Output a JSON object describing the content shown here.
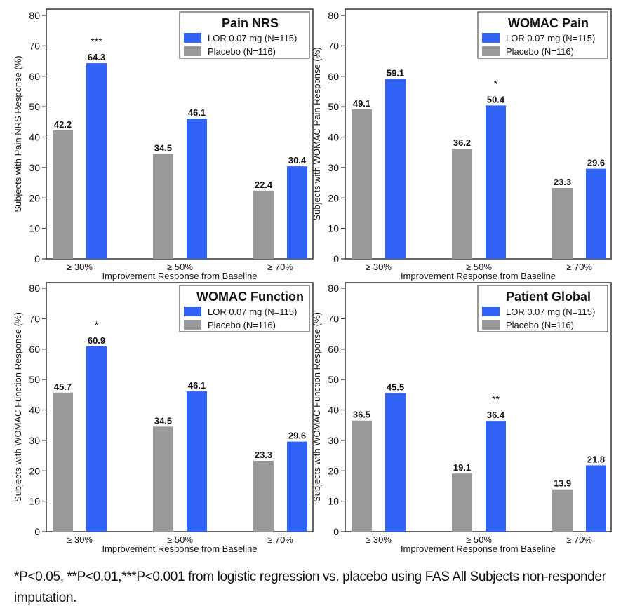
{
  "colors": {
    "active": "#3062F5",
    "placebo": "#999999",
    "axis": "#333333",
    "text": "#111111"
  },
  "footnote": "*P<0.05, **P<0.01,***P<0.001 from logistic regression vs. placebo using FAS All Subjects non-responder imputation.",
  "chart_data": [
    {
      "type": "bar",
      "title": "Pain NRS",
      "xlabel": "Improvement Response from Baseline",
      "ylabel": "Subjects with Pain NRS Response (%)",
      "categories": [
        "≥ 30%",
        "≥ 50%",
        "≥ 70%"
      ],
      "ylim": [
        0,
        80
      ],
      "yticks": [
        0,
        10,
        20,
        30,
        40,
        50,
        60,
        70,
        80
      ],
      "legend_position": "top-right",
      "series": [
        {
          "name": "Placebo (N=116)",
          "key": "placebo",
          "values": [
            42.2,
            34.5,
            22.4
          ],
          "labels": [
            "42.2",
            "34.5",
            "22.4"
          ]
        },
        {
          "name": "LOR 0.07 mg (N=115)",
          "key": "active",
          "values": [
            64.3,
            46.1,
            30.4
          ],
          "labels": [
            "64.3",
            "46.1",
            "30.4"
          ]
        }
      ],
      "legend_order": [
        "LOR 0.07 mg (N=115)",
        "Placebo (N=116)"
      ],
      "significance": [
        "***",
        "",
        ""
      ]
    },
    {
      "type": "bar",
      "title": "WOMAC Pain",
      "xlabel": "Improvement Response from Baseline",
      "ylabel": "Subjects with WOMAC Pain Response (%)",
      "categories": [
        "≥ 30%",
        "≥ 50%",
        "≥ 70%"
      ],
      "ylim": [
        0,
        80
      ],
      "yticks": [
        0,
        10,
        20,
        30,
        40,
        50,
        60,
        70,
        80
      ],
      "legend_position": "top-right",
      "series": [
        {
          "name": "Placebo (N=116)",
          "key": "placebo",
          "values": [
            49.1,
            36.2,
            23.3
          ],
          "labels": [
            "49.1",
            "36.2",
            "23.3"
          ]
        },
        {
          "name": "LOR 0.07 mg (N=115)",
          "key": "active",
          "values": [
            59.1,
            50.4,
            29.6
          ],
          "labels": [
            "59.1",
            "50.4",
            "29.6"
          ]
        }
      ],
      "legend_order": [
        "LOR 0.07 mg (N=115)",
        "Placebo (N=116)"
      ],
      "significance": [
        "",
        "*",
        ""
      ]
    },
    {
      "type": "bar",
      "title": "WOMAC Function",
      "xlabel": "Improvement Response from Baseline",
      "ylabel": "Subjects with WOMAC Function Response (%)",
      "categories": [
        "≥ 30%",
        "≥ 50%",
        "≥ 70%"
      ],
      "ylim": [
        0,
        80
      ],
      "yticks": [
        0,
        10,
        20,
        30,
        40,
        50,
        60,
        70,
        80
      ],
      "legend_position": "top-right",
      "series": [
        {
          "name": "Placebo (N=116)",
          "key": "placebo",
          "values": [
            45.7,
            34.5,
            23.3
          ],
          "labels": [
            "45.7",
            "34.5",
            "23.3"
          ]
        },
        {
          "name": "LOR 0.07 mg (N=115)",
          "key": "active",
          "values": [
            60.9,
            46.1,
            29.6
          ],
          "labels": [
            "60.9",
            "46.1",
            "29.6"
          ]
        }
      ],
      "legend_order": [
        "LOR 0.07 mg (N=115)",
        "Placebo (N=116)"
      ],
      "significance": [
        "*",
        "",
        ""
      ]
    },
    {
      "type": "bar",
      "title": "Patient Global",
      "xlabel": "Improvement Response from Baseline",
      "ylabel": "Subjects with WOMAC Function Response (%)",
      "categories": [
        "≥ 30%",
        "≥ 50%",
        "≥ 70%"
      ],
      "ylim": [
        0,
        80
      ],
      "yticks": [
        0,
        10,
        20,
        30,
        40,
        50,
        60,
        70,
        80
      ],
      "legend_position": "top-right",
      "series": [
        {
          "name": "Placebo (N=116)",
          "key": "placebo",
          "values": [
            36.5,
            19.1,
            13.9
          ],
          "labels": [
            "36.5",
            "19.1",
            "13.9"
          ]
        },
        {
          "name": "LOR 0.07 mg (N=115)",
          "key": "active",
          "values": [
            45.5,
            36.4,
            21.8
          ],
          "labels": [
            "45.5",
            "36.4",
            "21.8"
          ]
        }
      ],
      "legend_order": [
        "LOR 0.07 mg (N=115)",
        "Placebo (N=116)"
      ],
      "significance": [
        "",
        "**",
        ""
      ]
    }
  ]
}
